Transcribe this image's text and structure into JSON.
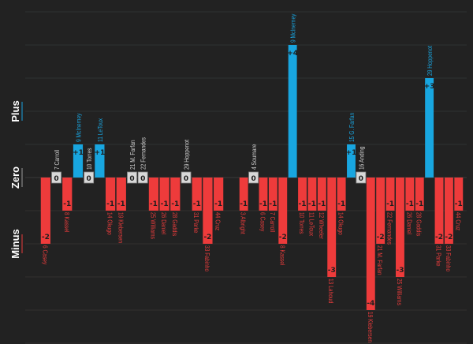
{
  "chart_data": {
    "type": "bar",
    "title": "",
    "ylim": [
      -5,
      5
    ],
    "grid": true,
    "y_axis_labels": [
      {
        "text": "Plus",
        "value": 2,
        "color": "#1aa3dd"
      },
      {
        "text": "Zero",
        "value": 0,
        "color": "#9a9a9a"
      },
      {
        "text": "Minus",
        "value": -2,
        "color": "#e83c3c"
      }
    ],
    "colors": {
      "plus": "#18a6e0",
      "minus": "#ee3b3b",
      "zero_box": "#d8d8d8",
      "zero_label": "#d0d0d0",
      "background": "#222222",
      "grid": "#303030"
    },
    "groups": [
      {
        "items": [
          {
            "label": "6 Casey",
            "value": -2
          },
          {
            "label": "7 Carroll",
            "value": 0
          },
          {
            "label": "8 Kassel",
            "value": -1
          },
          {
            "label": "9 McInerney",
            "value": 1
          },
          {
            "label": "10 Torres",
            "value": 0
          },
          {
            "label": "11 LeToux",
            "value": 1
          },
          {
            "label": "14 Okugo",
            "value": -1
          },
          {
            "label": "19 Klebersen",
            "value": -1
          },
          {
            "label": "21 M. Farfan",
            "value": 0
          },
          {
            "label": "22 Fernandes",
            "value": 0
          },
          {
            "label": "25 Williams",
            "value": -1
          },
          {
            "label": "26 Daniel",
            "value": -1
          },
          {
            "label": "28 Gaddis",
            "value": -1
          },
          {
            "label": "29 Hoppenot",
            "value": 0
          },
          {
            "label": "31 Parke",
            "value": -1
          },
          {
            "label": "33 Fabinho",
            "value": -2
          },
          {
            "label": "44 Cruz",
            "value": -1
          }
        ]
      },
      {
        "items": [
          {
            "label": "3 Albright",
            "value": -1
          },
          {
            "label": "4 Soumare",
            "value": 0
          },
          {
            "label": "6 Casey",
            "value": -1
          },
          {
            "label": "7 Carroll",
            "value": -1
          },
          {
            "label": "8 Kassel",
            "value": -2
          },
          {
            "label": "9 McInerney",
            "value": 4
          },
          {
            "label": "10 Torres",
            "value": -1
          },
          {
            "label": "11 LeToux",
            "value": -1
          },
          {
            "label": "12 Wheeler",
            "value": -1
          },
          {
            "label": "13 Lahoud",
            "value": -3
          },
          {
            "label": "14 Okugo",
            "value": -1
          },
          {
            "label": "15 G. Farfan",
            "value": 1
          },
          {
            "label": "16 Anding",
            "value": 0
          },
          {
            "label": "19 Klebersen",
            "value": -4
          },
          {
            "label": "21 M. Farfan",
            "value": -2
          },
          {
            "label": "22 Fernandes",
            "value": -1
          },
          {
            "label": "25 Williams",
            "value": -3
          },
          {
            "label": "26 Daniel",
            "value": -1
          },
          {
            "label": "28 Gaddis",
            "value": -1
          },
          {
            "label": "29 Hoppenot",
            "value": 3
          },
          {
            "label": "31 Parke",
            "value": -2
          },
          {
            "label": "33 Fabinho",
            "value": -2
          },
          {
            "label": "44 Cruz",
            "value": -1
          }
        ]
      }
    ]
  }
}
